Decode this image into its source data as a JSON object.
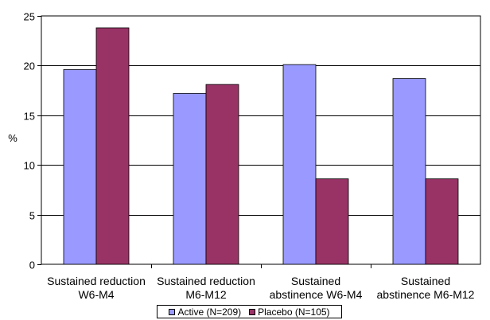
{
  "chart_data": {
    "type": "bar",
    "title": "",
    "xlabel": "",
    "ylabel": "%",
    "ylim": [
      0,
      25
    ],
    "yticks": [
      0,
      5,
      10,
      15,
      20,
      25
    ],
    "categories": [
      [
        "Sustained reduction",
        "W6-M4"
      ],
      [
        "Sustained reduction",
        "M6-M12"
      ],
      [
        "Sustained",
        "abstinence W6-M4"
      ],
      [
        "Sustained",
        "abstinence M6-M12"
      ]
    ],
    "series": [
      {
        "name": "Active (N=209)",
        "color": "#9999ff",
        "values": [
          19.6,
          17.2,
          20.1,
          18.7
        ]
      },
      {
        "name": "Placebo (N=105)",
        "color": "#993366",
        "values": [
          23.8,
          18.1,
          8.6,
          8.6
        ]
      }
    ],
    "grid": true,
    "legend_position": "bottom"
  }
}
